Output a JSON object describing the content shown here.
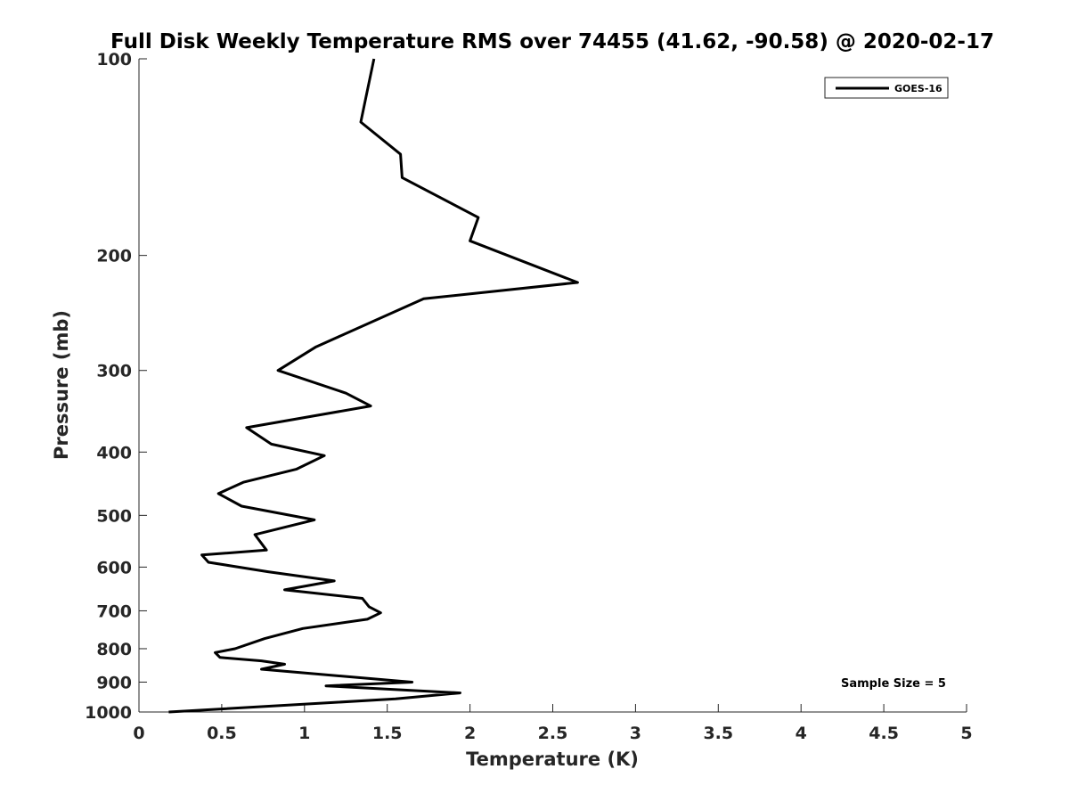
{
  "chart_data": {
    "type": "line",
    "title": "Full Disk Weekly Temperature RMS over 74455 (41.62, -90.58) @ 2020-02-17",
    "xlabel": "Temperature (K)",
    "ylabel": "Pressure (mb)",
    "xlim": [
      0,
      5
    ],
    "ylim": [
      1000,
      100
    ],
    "y_scale": "log",
    "y_reversed": true,
    "x_ticks": [
      "0",
      "0.5",
      "1",
      "1.5",
      "2",
      "2.5",
      "3",
      "3.5",
      "4",
      "4.5",
      "5"
    ],
    "y_ticks": [
      "100",
      "200",
      "300",
      "400",
      "500",
      "600",
      "700",
      "800",
      "900",
      "1000"
    ],
    "grid": false,
    "legend_position": "top-right",
    "series": [
      {
        "name": "GOES-16",
        "color": "#000000",
        "x": [
          1.42,
          1.37,
          1.34,
          1.58,
          1.59,
          2.05,
          2.0,
          2.65,
          1.72,
          1.07,
          0.84,
          1.25,
          1.4,
          0.65,
          0.8,
          1.12,
          0.95,
          0.63,
          0.48,
          0.62,
          1.06,
          0.7,
          0.77,
          0.38,
          0.42,
          0.78,
          1.18,
          0.88,
          1.35,
          1.39,
          1.46,
          1.38,
          0.99,
          0.76,
          0.58,
          0.46,
          0.49,
          0.74,
          0.88,
          0.74,
          1.65,
          1.13,
          1.94,
          1.55,
          0.18
        ],
        "y": [
          100,
          115,
          125,
          140,
          152,
          175,
          190,
          220,
          233,
          276,
          300,
          325,
          340,
          367,
          389,
          405,
          425,
          445,
          463,
          484,
          508,
          535,
          565,
          575,
          590,
          610,
          630,
          650,
          670,
          690,
          705,
          721,
          745,
          772,
          800,
          811,
          825,
          835,
          845,
          860,
          900,
          912,
          935,
          955,
          1000
        ]
      }
    ],
    "annotation": "Sample Size = 5"
  }
}
